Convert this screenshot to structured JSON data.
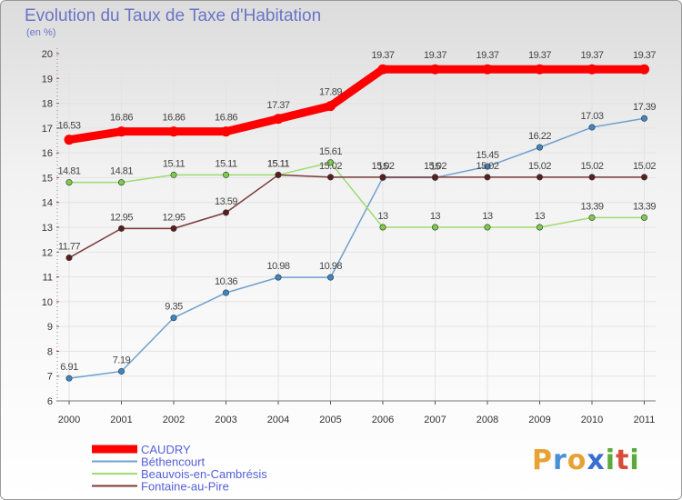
{
  "header": {
    "title": "Evolution du Taux de Taxe d'Habitation",
    "unit": "(en %)"
  },
  "logo": {
    "text": "Proxiti",
    "letters": [
      "P",
      "r",
      "o",
      "x",
      "i",
      "t",
      "i"
    ],
    "colors": [
      "#e8a233",
      "#4b8fd6",
      "#e8a233",
      "#3a6fd0",
      "#5aaa3c",
      "#d84a3a",
      "#5aaa3c"
    ]
  },
  "chart_data": {
    "type": "line",
    "title": "Evolution du Taux de Taxe d'Habitation",
    "ylabel": "(en %)",
    "xlabel": "",
    "x": [
      "2000",
      "2001",
      "2002",
      "2003",
      "2004",
      "2005",
      "2006",
      "2007",
      "2008",
      "2009",
      "2010",
      "2011"
    ],
    "ylim": [
      6,
      20
    ],
    "yticks": [
      6,
      7,
      8,
      9,
      10,
      11,
      12,
      13,
      14,
      15,
      16,
      17,
      18,
      19,
      20
    ],
    "grid": true,
    "legend_position": "bottom-left",
    "series": [
      {
        "name": "CAUDRY",
        "color": "#ff0000",
        "thick": true,
        "values": [
          16.53,
          16.86,
          16.86,
          16.86,
          17.37,
          17.89,
          19.37,
          19.37,
          19.37,
          19.37,
          19.37,
          19.37
        ],
        "labels": [
          "16.53",
          "16.86",
          "16.86",
          "16.86",
          "17.37",
          "17.89",
          "19.37",
          "19.37",
          "19.37",
          "19.37",
          "19.37",
          "19.37"
        ]
      },
      {
        "name": "Béthencourt",
        "color": "#6fa0d0",
        "marker": "#3d86c6",
        "values": [
          6.91,
          7.19,
          9.35,
          10.36,
          10.98,
          10.98,
          15.0,
          15.0,
          15.45,
          16.22,
          17.03,
          17.39
        ],
        "labels": [
          "6.91",
          "7.19",
          "9.35",
          "10.36",
          "10.98",
          "10.98",
          "15",
          "15",
          "15.45",
          "16.22",
          "17.03",
          "17.39"
        ]
      },
      {
        "name": "Beauvois-en-Cambrésis",
        "color": "#9ddc70",
        "marker": "#7ccc4a",
        "values": [
          14.81,
          14.81,
          15.11,
          15.11,
          15.11,
          15.61,
          13.0,
          13.0,
          13.0,
          13.0,
          13.39,
          13.39
        ],
        "labels": [
          "14.81",
          "14.81",
          "15.11",
          "15.11",
          "15.11",
          "15.61",
          "13",
          "13",
          "13",
          "13",
          "13.39",
          "13.39"
        ]
      },
      {
        "name": "Fontaine-au-Pire",
        "color": "#7a3a3a",
        "marker": "#5a1e1e",
        "values": [
          11.77,
          12.95,
          12.95,
          13.59,
          15.11,
          15.02,
          15.02,
          15.02,
          15.02,
          15.02,
          15.02,
          15.02
        ],
        "labels": [
          "11.77",
          "12.95",
          "12.95",
          "13.59",
          "15.11",
          "15.02",
          "15.02",
          "15.02",
          "15.02",
          "15.02",
          "15.02",
          "15.02"
        ]
      }
    ]
  }
}
